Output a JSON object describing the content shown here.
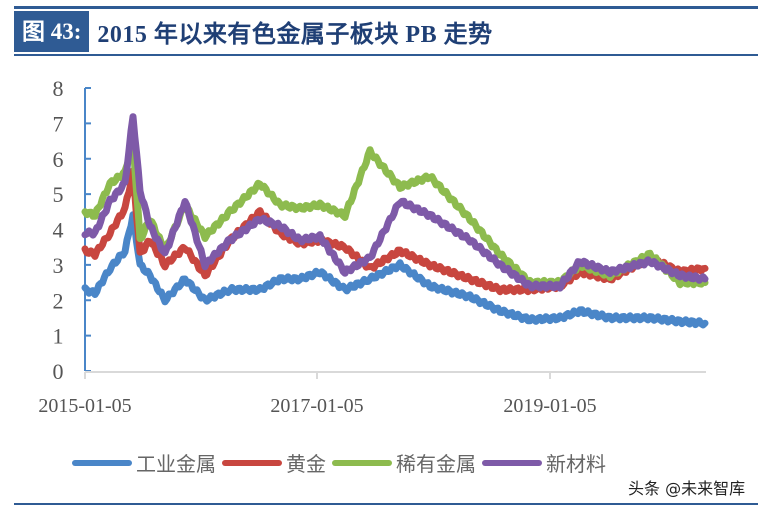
{
  "header": {
    "figure_label": "图 43:",
    "title": "2015 年以来有色金属子板块 PB 走势"
  },
  "watermark": "头条 @未来智库",
  "colors": {
    "frame": "#2f5b94",
    "industrial": "#4a86c8",
    "gold": "#c8463f",
    "rare": "#8dbb4e",
    "new_material": "#7e5aa8"
  },
  "chart_data": {
    "type": "line",
    "title": "2015 年以来有色金属子板块 PB 走势",
    "xlabel": "",
    "ylabel": "",
    "ylim": [
      0,
      8
    ],
    "yticks": [
      0,
      1,
      2,
      3,
      4,
      5,
      6,
      7,
      8
    ],
    "xtick_labels": [
      "2015-01-05",
      "2017-01-05",
      "2019-01-05"
    ],
    "xrange": [
      "2015-01-05",
      "2019-09"
    ],
    "grid": false,
    "legend_position": "bottom",
    "x": [
      "2015-01",
      "2015-02",
      "2015-04",
      "2015-05",
      "2015-06",
      "2015-07",
      "2015-08",
      "2015-09",
      "2015-11",
      "2016-01",
      "2016-04",
      "2016-07",
      "2016-09",
      "2016-11",
      "2017-01",
      "2017-04",
      "2017-06",
      "2017-09",
      "2017-12",
      "2018-04",
      "2018-07",
      "2018-10",
      "2019-01",
      "2019-03",
      "2019-06",
      "2019-10",
      "2020-01",
      "2020-04"
    ],
    "series": [
      {
        "name": "工业金属",
        "color": "#4a86c8",
        "values": [
          2.3,
          2.2,
          2.9,
          3.4,
          4.4,
          3.0,
          2.7,
          2.0,
          2.6,
          2.0,
          2.3,
          2.3,
          2.6,
          2.6,
          2.8,
          2.3,
          2.6,
          3.0,
          2.4,
          2.1,
          1.7,
          1.45,
          1.5,
          1.7,
          1.5,
          1.5,
          1.4,
          1.35
        ]
      },
      {
        "name": "黄金",
        "color": "#c8463f",
        "values": [
          3.4,
          3.3,
          3.9,
          4.6,
          5.6,
          3.3,
          3.7,
          3.0,
          3.5,
          2.7,
          3.7,
          4.5,
          3.9,
          3.6,
          3.7,
          3.5,
          2.9,
          3.4,
          3.0,
          2.6,
          2.3,
          2.3,
          2.4,
          2.8,
          2.6,
          3.2,
          2.8,
          2.9
        ]
      },
      {
        "name": "稀有金属",
        "color": "#8dbb4e",
        "values": [
          4.5,
          4.4,
          5.3,
          5.6,
          6.5,
          3.7,
          4.3,
          3.4,
          4.7,
          3.8,
          4.5,
          5.3,
          4.7,
          4.6,
          4.7,
          4.4,
          6.2,
          5.2,
          5.5,
          4.3,
          3.3,
          2.5,
          2.5,
          3.0,
          2.7,
          3.3,
          2.5,
          2.5
        ]
      },
      {
        "name": "新材料",
        "color": "#7e5aa8",
        "values": [
          3.9,
          3.9,
          4.8,
          5.3,
          7.2,
          5.1,
          4.1,
          3.3,
          4.8,
          3.0,
          3.7,
          4.3,
          4.1,
          3.7,
          3.8,
          2.8,
          3.2,
          4.8,
          4.4,
          3.7,
          3.0,
          2.4,
          2.4,
          3.1,
          2.8,
          3.1,
          2.7,
          2.6
        ]
      }
    ]
  },
  "legend": [
    {
      "label": "工业金属",
      "color": "#4a86c8"
    },
    {
      "label": "黄金",
      "color": "#c8463f"
    },
    {
      "label": "稀有金属",
      "color": "#8dbb4e"
    },
    {
      "label": "新材料",
      "color": "#7e5aa8"
    }
  ]
}
